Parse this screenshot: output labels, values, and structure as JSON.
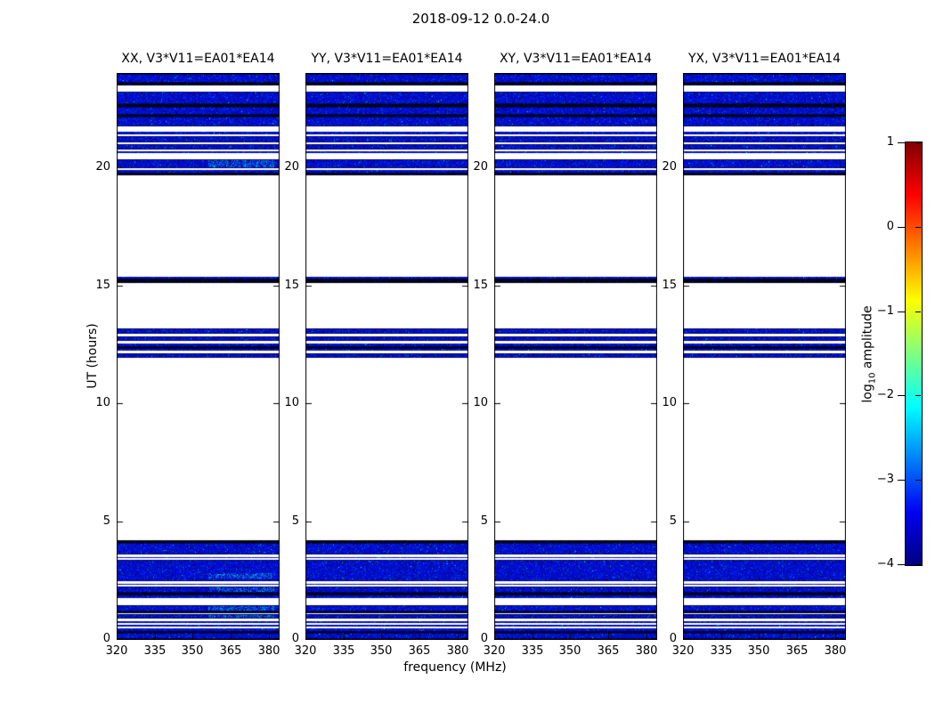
{
  "figure": {
    "title": "2018-09-12 0.0-24.0",
    "background_color": "#ffffff"
  },
  "chart_data": {
    "type": "heatmap",
    "title": "2018-09-12 0.0-24.0",
    "xlabel": "frequency (MHz)",
    "ylabel": "UT (hours)",
    "x_ticks": [
      320,
      335,
      350,
      365,
      380
    ],
    "x_range": [
      320,
      384
    ],
    "y_ticks": [
      0,
      5,
      10,
      15,
      20
    ],
    "y_range": [
      0,
      24
    ],
    "grid": false,
    "colormap": "jet",
    "data_color_low": "#0000c8",
    "flag_color": "#ffffff",
    "colorbar": {
      "label_pre": "log",
      "label_sub": "10",
      "label_post": " amplitude",
      "tick_labels": [
        "1",
        "0",
        "−1",
        "−2",
        "−3",
        "−4"
      ],
      "tick_values": [
        1,
        0,
        -1,
        -2,
        -3,
        -4
      ],
      "range": [
        -4,
        1
      ],
      "position": "right"
    },
    "panels": [
      {
        "pol": "xx",
        "title": "XX, V3*V11=EA01*EA14",
        "bright_patches": {
          "freq_range": [
            356,
            382
          ],
          "time_ranges": [
            [
              19.98,
              20.36
            ],
            [
              2.57,
              2.8
            ],
            [
              1.98,
              2.2
            ],
            [
              1.2,
              1.44
            ],
            [
              0.88,
              1.06
            ]
          ]
        }
      },
      {
        "pol": "yy",
        "title": "YY, V3*V11=EA01*EA14",
        "bright_patches": {
          "freq_range": [
            356,
            382
          ],
          "time_ranges": []
        }
      },
      {
        "pol": "xy",
        "title": "XY, V3*V11=EA01*EA14",
        "bright_patches": {
          "freq_range": [
            356,
            382
          ],
          "time_ranges": []
        }
      },
      {
        "pol": "yx",
        "title": "YX, V3*V11=EA01*EA14",
        "bright_patches": {
          "freq_range": [
            356,
            382
          ],
          "time_ranges": []
        }
      }
    ],
    "time_bands": [
      [
        23.62,
        24.0,
        "blue"
      ],
      [
        23.52,
        23.62,
        "black"
      ],
      [
        22.72,
        23.26,
        "blue"
      ],
      [
        22.62,
        22.72,
        "black"
      ],
      [
        22.25,
        22.62,
        "blue"
      ],
      [
        22.17,
        22.25,
        "black"
      ],
      [
        21.76,
        22.17,
        "blue"
      ],
      [
        21.44,
        21.56,
        "blue"
      ],
      [
        21.1,
        21.36,
        "blue"
      ],
      [
        20.8,
        21.01,
        "blue"
      ],
      [
        20.64,
        20.72,
        "blue"
      ],
      [
        19.98,
        20.36,
        "blue"
      ],
      [
        19.8,
        19.91,
        "blue"
      ],
      [
        19.7,
        19.8,
        "black"
      ],
      [
        15.32,
        15.4,
        "blue"
      ],
      [
        15.13,
        15.32,
        "black"
      ],
      [
        12.96,
        13.18,
        "blue"
      ],
      [
        12.66,
        12.85,
        "blue"
      ],
      [
        12.44,
        12.56,
        "blue"
      ],
      [
        12.33,
        12.44,
        "black"
      ],
      [
        12.26,
        12.33,
        "blue"
      ],
      [
        11.95,
        12.15,
        "blue"
      ],
      [
        4.08,
        4.19,
        "black"
      ],
      [
        3.6,
        4.08,
        "blue"
      ],
      [
        3.43,
        3.49,
        "blue"
      ],
      [
        2.46,
        3.35,
        "blue"
      ],
      [
        2.3,
        2.35,
        "blue"
      ],
      [
        1.96,
        2.22,
        "blue"
      ],
      [
        1.87,
        1.95,
        "black"
      ],
      [
        1.73,
        1.86,
        "blue"
      ],
      [
        1.19,
        1.45,
        "blue"
      ],
      [
        1.09,
        1.17,
        "black"
      ],
      [
        0.87,
        1.07,
        "blue"
      ],
      [
        0.69,
        0.74,
        "blue"
      ],
      [
        0.54,
        0.61,
        "blue"
      ],
      [
        0.35,
        0.44,
        "blue"
      ],
      [
        0.27,
        0.34,
        "black"
      ],
      [
        0.0,
        0.26,
        "blue"
      ]
    ]
  }
}
